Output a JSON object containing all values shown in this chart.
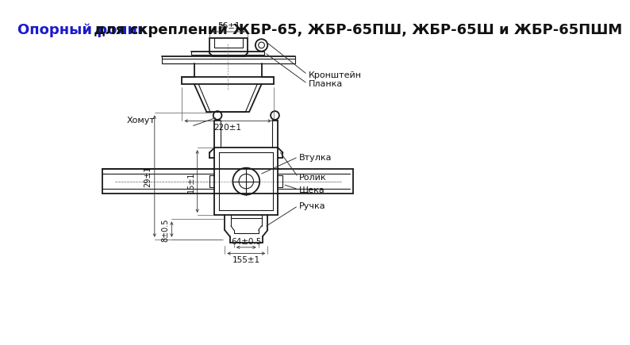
{
  "title_blue": "Опорный ролик",
  "title_black": " для скреплений ЖБР-65, ЖБР-65ПШ, ЖБР-65Ш и ЖБР-65ПШМ",
  "title_fontsize": 13,
  "background_color": "#ffffff",
  "line_color": "#1a1a1a",
  "dim_color": "#333333",
  "label_fontsize": 8,
  "dim_fontsize": 7.5
}
